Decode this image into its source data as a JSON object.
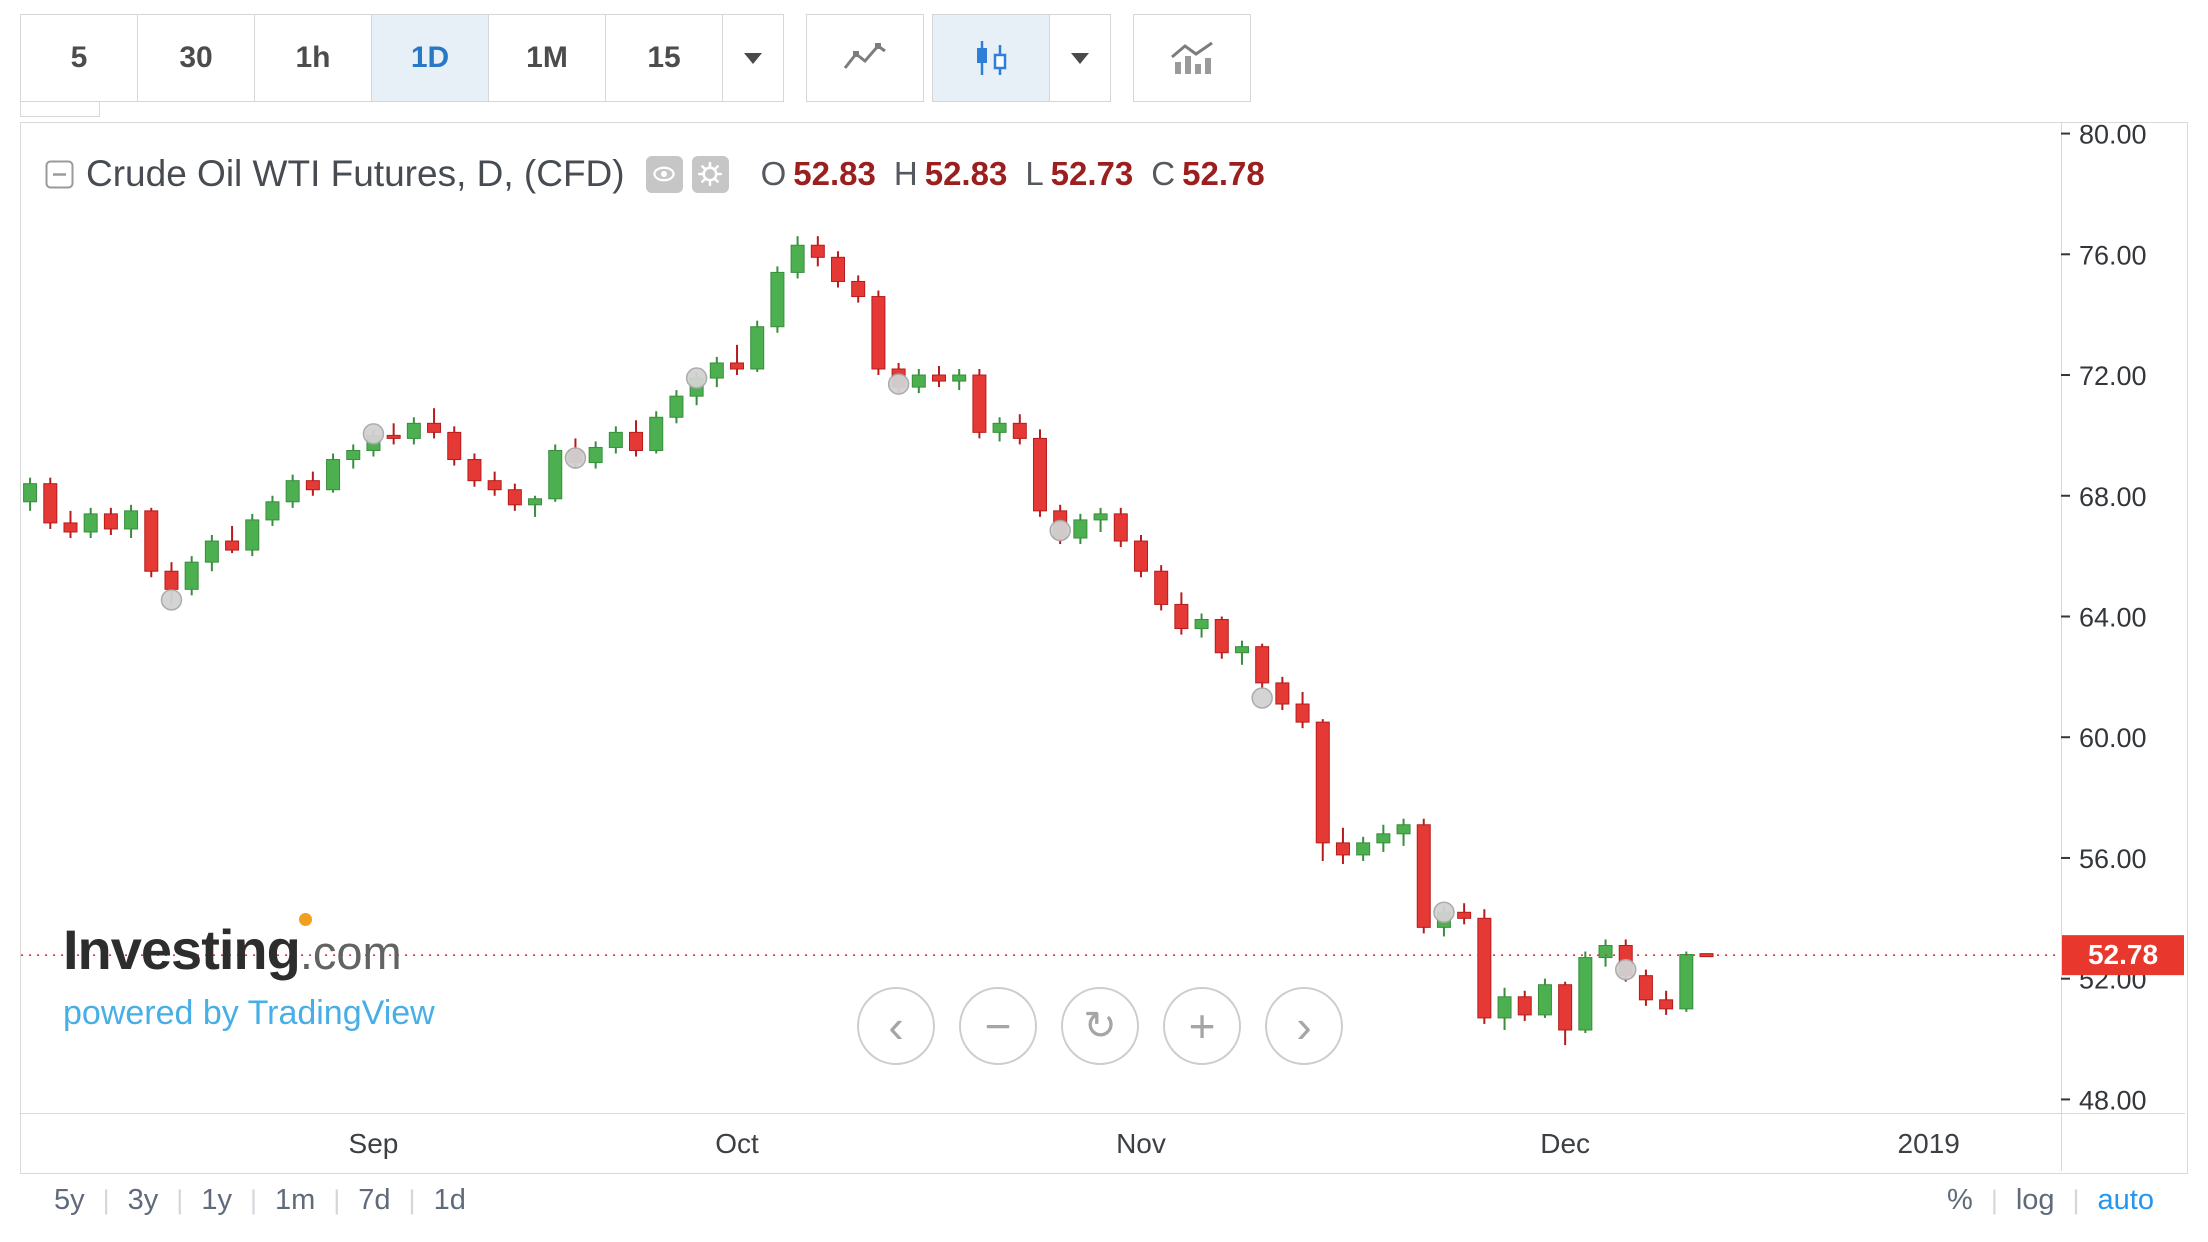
{
  "toolbar": {
    "intervals": [
      {
        "label": "5",
        "active": false
      },
      {
        "label": "30",
        "active": false
      },
      {
        "label": "1h",
        "active": false
      },
      {
        "label": "1D",
        "active": true
      },
      {
        "label": "1M",
        "active": false
      },
      {
        "label": "15",
        "active": false
      }
    ],
    "chart_types": [
      {
        "name": "line-chart",
        "active": false
      },
      {
        "name": "candlestick-chart",
        "active": true
      }
    ]
  },
  "legend": {
    "title": "Crude Oil WTI Futures, D, (CFD)",
    "ohlc": [
      {
        "k": "O",
        "v": "52.83"
      },
      {
        "k": "H",
        "v": "52.83"
      },
      {
        "k": "L",
        "v": "52.73"
      },
      {
        "k": "C",
        "v": "52.78"
      }
    ]
  },
  "watermark": {
    "brand": "Investing",
    "brand_suffix": ".com",
    "powered_by": "powered by TradingView"
  },
  "nav": {
    "buttons": [
      {
        "name": "pan-left-button",
        "glyph": "‹",
        "small": false
      },
      {
        "name": "zoom-out-button",
        "glyph": "−",
        "small": false
      },
      {
        "name": "reset-view-button",
        "glyph": "↻",
        "small": true
      },
      {
        "name": "zoom-in-button",
        "glyph": "+",
        "small": false
      },
      {
        "name": "pan-right-button",
        "glyph": "›",
        "small": false
      }
    ]
  },
  "footer": {
    "ranges": [
      "5y",
      "3y",
      "1y",
      "1m",
      "7d",
      "1d"
    ],
    "scales": [
      {
        "label": "%",
        "active": false
      },
      {
        "label": "log",
        "active": false
      },
      {
        "label": "auto",
        "active": true
      }
    ]
  },
  "chart_data": {
    "type": "candlestick",
    "title": "Crude Oil WTI Futures, D, (CFD)",
    "last_price": 52.78,
    "price_label": "52.78",
    "y_axis": {
      "min": 47.55,
      "max": 80.35,
      "ticks": [
        80,
        76,
        72,
        68,
        64,
        60,
        56,
        52,
        48
      ]
    },
    "x_axis": {
      "slots": 101,
      "ticks": [
        {
          "slot": 17,
          "label": "Sep"
        },
        {
          "slot": 35,
          "label": "Oct"
        },
        {
          "slot": 55,
          "label": "Nov"
        },
        {
          "slot": 76,
          "label": "Dec"
        },
        {
          "slot": 94,
          "label": "2019"
        }
      ]
    },
    "candles": [
      [
        67.8,
        68.6,
        67.5,
        68.4
      ],
      [
        68.4,
        68.6,
        66.9,
        67.1
      ],
      [
        67.1,
        67.5,
        66.6,
        66.8
      ],
      [
        66.8,
        67.6,
        66.6,
        67.4
      ],
      [
        67.4,
        67.6,
        66.7,
        66.9
      ],
      [
        66.9,
        67.7,
        66.6,
        67.5
      ],
      [
        67.5,
        67.6,
        65.3,
        65.5
      ],
      [
        65.5,
        65.8,
        64.4,
        64.9
      ],
      [
        64.9,
        66.0,
        64.7,
        65.8
      ],
      [
        65.8,
        66.7,
        65.5,
        66.5
      ],
      [
        66.5,
        67.0,
        66.1,
        66.2
      ],
      [
        66.2,
        67.4,
        66.0,
        67.2
      ],
      [
        67.2,
        68.0,
        67.0,
        67.8
      ],
      [
        67.8,
        68.7,
        67.6,
        68.5
      ],
      [
        68.5,
        68.8,
        68.0,
        68.2
      ],
      [
        68.2,
        69.4,
        68.1,
        69.2
      ],
      [
        69.2,
        69.7,
        68.9,
        69.5
      ],
      [
        69.5,
        70.2,
        69.3,
        70.0
      ],
      [
        70.0,
        70.4,
        69.7,
        69.9
      ],
      [
        69.9,
        70.6,
        69.7,
        70.4
      ],
      [
        70.4,
        70.9,
        69.9,
        70.1
      ],
      [
        70.1,
        70.3,
        69.0,
        69.2
      ],
      [
        69.2,
        69.4,
        68.3,
        68.5
      ],
      [
        68.5,
        68.8,
        68.0,
        68.2
      ],
      [
        68.2,
        68.4,
        67.5,
        67.7
      ],
      [
        67.7,
        68.0,
        67.3,
        67.9
      ],
      [
        67.9,
        69.7,
        67.8,
        69.5
      ],
      [
        69.5,
        69.9,
        68.9,
        69.1
      ],
      [
        69.1,
        69.8,
        68.9,
        69.6
      ],
      [
        69.6,
        70.3,
        69.4,
        70.1
      ],
      [
        70.1,
        70.5,
        69.3,
        69.5
      ],
      [
        69.5,
        70.8,
        69.4,
        70.6
      ],
      [
        70.6,
        71.5,
        70.4,
        71.3
      ],
      [
        71.3,
        72.1,
        71.0,
        71.9
      ],
      [
        71.9,
        72.6,
        71.6,
        72.4
      ],
      [
        72.4,
        73.0,
        72.0,
        72.2
      ],
      [
        72.2,
        73.8,
        72.1,
        73.6
      ],
      [
        73.6,
        75.6,
        73.4,
        75.4
      ],
      [
        75.4,
        76.6,
        75.2,
        76.3
      ],
      [
        76.3,
        76.6,
        75.6,
        75.9
      ],
      [
        75.9,
        76.1,
        74.9,
        75.1
      ],
      [
        75.1,
        75.3,
        74.4,
        74.6
      ],
      [
        74.6,
        74.8,
        72.0,
        72.2
      ],
      [
        72.2,
        72.4,
        71.4,
        71.6
      ],
      [
        71.6,
        72.2,
        71.4,
        72.0
      ],
      [
        72.0,
        72.3,
        71.6,
        71.8
      ],
      [
        71.8,
        72.2,
        71.5,
        72.0
      ],
      [
        72.0,
        72.2,
        69.9,
        70.1
      ],
      [
        70.1,
        70.6,
        69.8,
        70.4
      ],
      [
        70.4,
        70.7,
        69.7,
        69.9
      ],
      [
        69.9,
        70.2,
        67.3,
        67.5
      ],
      [
        67.5,
        67.7,
        66.4,
        66.6
      ],
      [
        66.6,
        67.4,
        66.4,
        67.2
      ],
      [
        67.2,
        67.6,
        66.8,
        67.4
      ],
      [
        67.4,
        67.6,
        66.3,
        66.5
      ],
      [
        66.5,
        66.7,
        65.3,
        65.5
      ],
      [
        65.5,
        65.7,
        64.2,
        64.4
      ],
      [
        64.4,
        64.8,
        63.4,
        63.6
      ],
      [
        63.6,
        64.1,
        63.3,
        63.9
      ],
      [
        63.9,
        64.0,
        62.6,
        62.8
      ],
      [
        62.8,
        63.2,
        62.4,
        63.0
      ],
      [
        63.0,
        63.1,
        61.6,
        61.8
      ],
      [
        61.8,
        62.0,
        60.9,
        61.1
      ],
      [
        61.1,
        61.5,
        60.3,
        60.5
      ],
      [
        60.5,
        60.6,
        55.9,
        56.5
      ],
      [
        56.5,
        57.0,
        55.8,
        56.1
      ],
      [
        56.1,
        56.7,
        55.9,
        56.5
      ],
      [
        56.5,
        57.1,
        56.2,
        56.8
      ],
      [
        56.8,
        57.3,
        56.4,
        57.1
      ],
      [
        57.1,
        57.3,
        53.5,
        53.7
      ],
      [
        53.7,
        54.4,
        53.4,
        54.2
      ],
      [
        54.2,
        54.5,
        53.8,
        54.0
      ],
      [
        54.0,
        54.3,
        50.5,
        50.7
      ],
      [
        50.7,
        51.7,
        50.3,
        51.4
      ],
      [
        51.4,
        51.6,
        50.6,
        50.8
      ],
      [
        50.8,
        52.0,
        50.7,
        51.8
      ],
      [
        51.8,
        51.9,
        49.8,
        50.3
      ],
      [
        50.3,
        52.9,
        50.2,
        52.7
      ],
      [
        52.7,
        53.3,
        52.4,
        53.1
      ],
      [
        53.1,
        53.3,
        51.9,
        52.1
      ],
      [
        52.1,
        52.3,
        51.1,
        51.3
      ],
      [
        51.3,
        51.6,
        50.8,
        51.0
      ],
      [
        51.0,
        52.9,
        50.9,
        52.8
      ],
      [
        52.83,
        52.83,
        52.73,
        52.78
      ]
    ],
    "markers": [
      {
        "i": 7,
        "p": 64.55
      },
      {
        "i": 17,
        "p": 70.05
      },
      {
        "i": 27,
        "p": 69.25
      },
      {
        "i": 33,
        "p": 71.9
      },
      {
        "i": 43,
        "p": 71.7
      },
      {
        "i": 51,
        "p": 66.85
      },
      {
        "i": 61,
        "p": 61.3
      },
      {
        "i": 70,
        "p": 54.2
      },
      {
        "i": 79,
        "p": 52.3
      }
    ],
    "colors": {
      "up": "#4caf50",
      "up_border": "#388e3c",
      "down": "#e53935",
      "down_border": "#b71c1c",
      "marker": "#d2d2d2",
      "marker_border": "#a8a8a8",
      "price_line": "#e8382d",
      "tag_bg": "#e8382d",
      "tag_text": "#ffffff",
      "axis_text": "#33363b",
      "frame_line": "#d9d9d9"
    }
  }
}
